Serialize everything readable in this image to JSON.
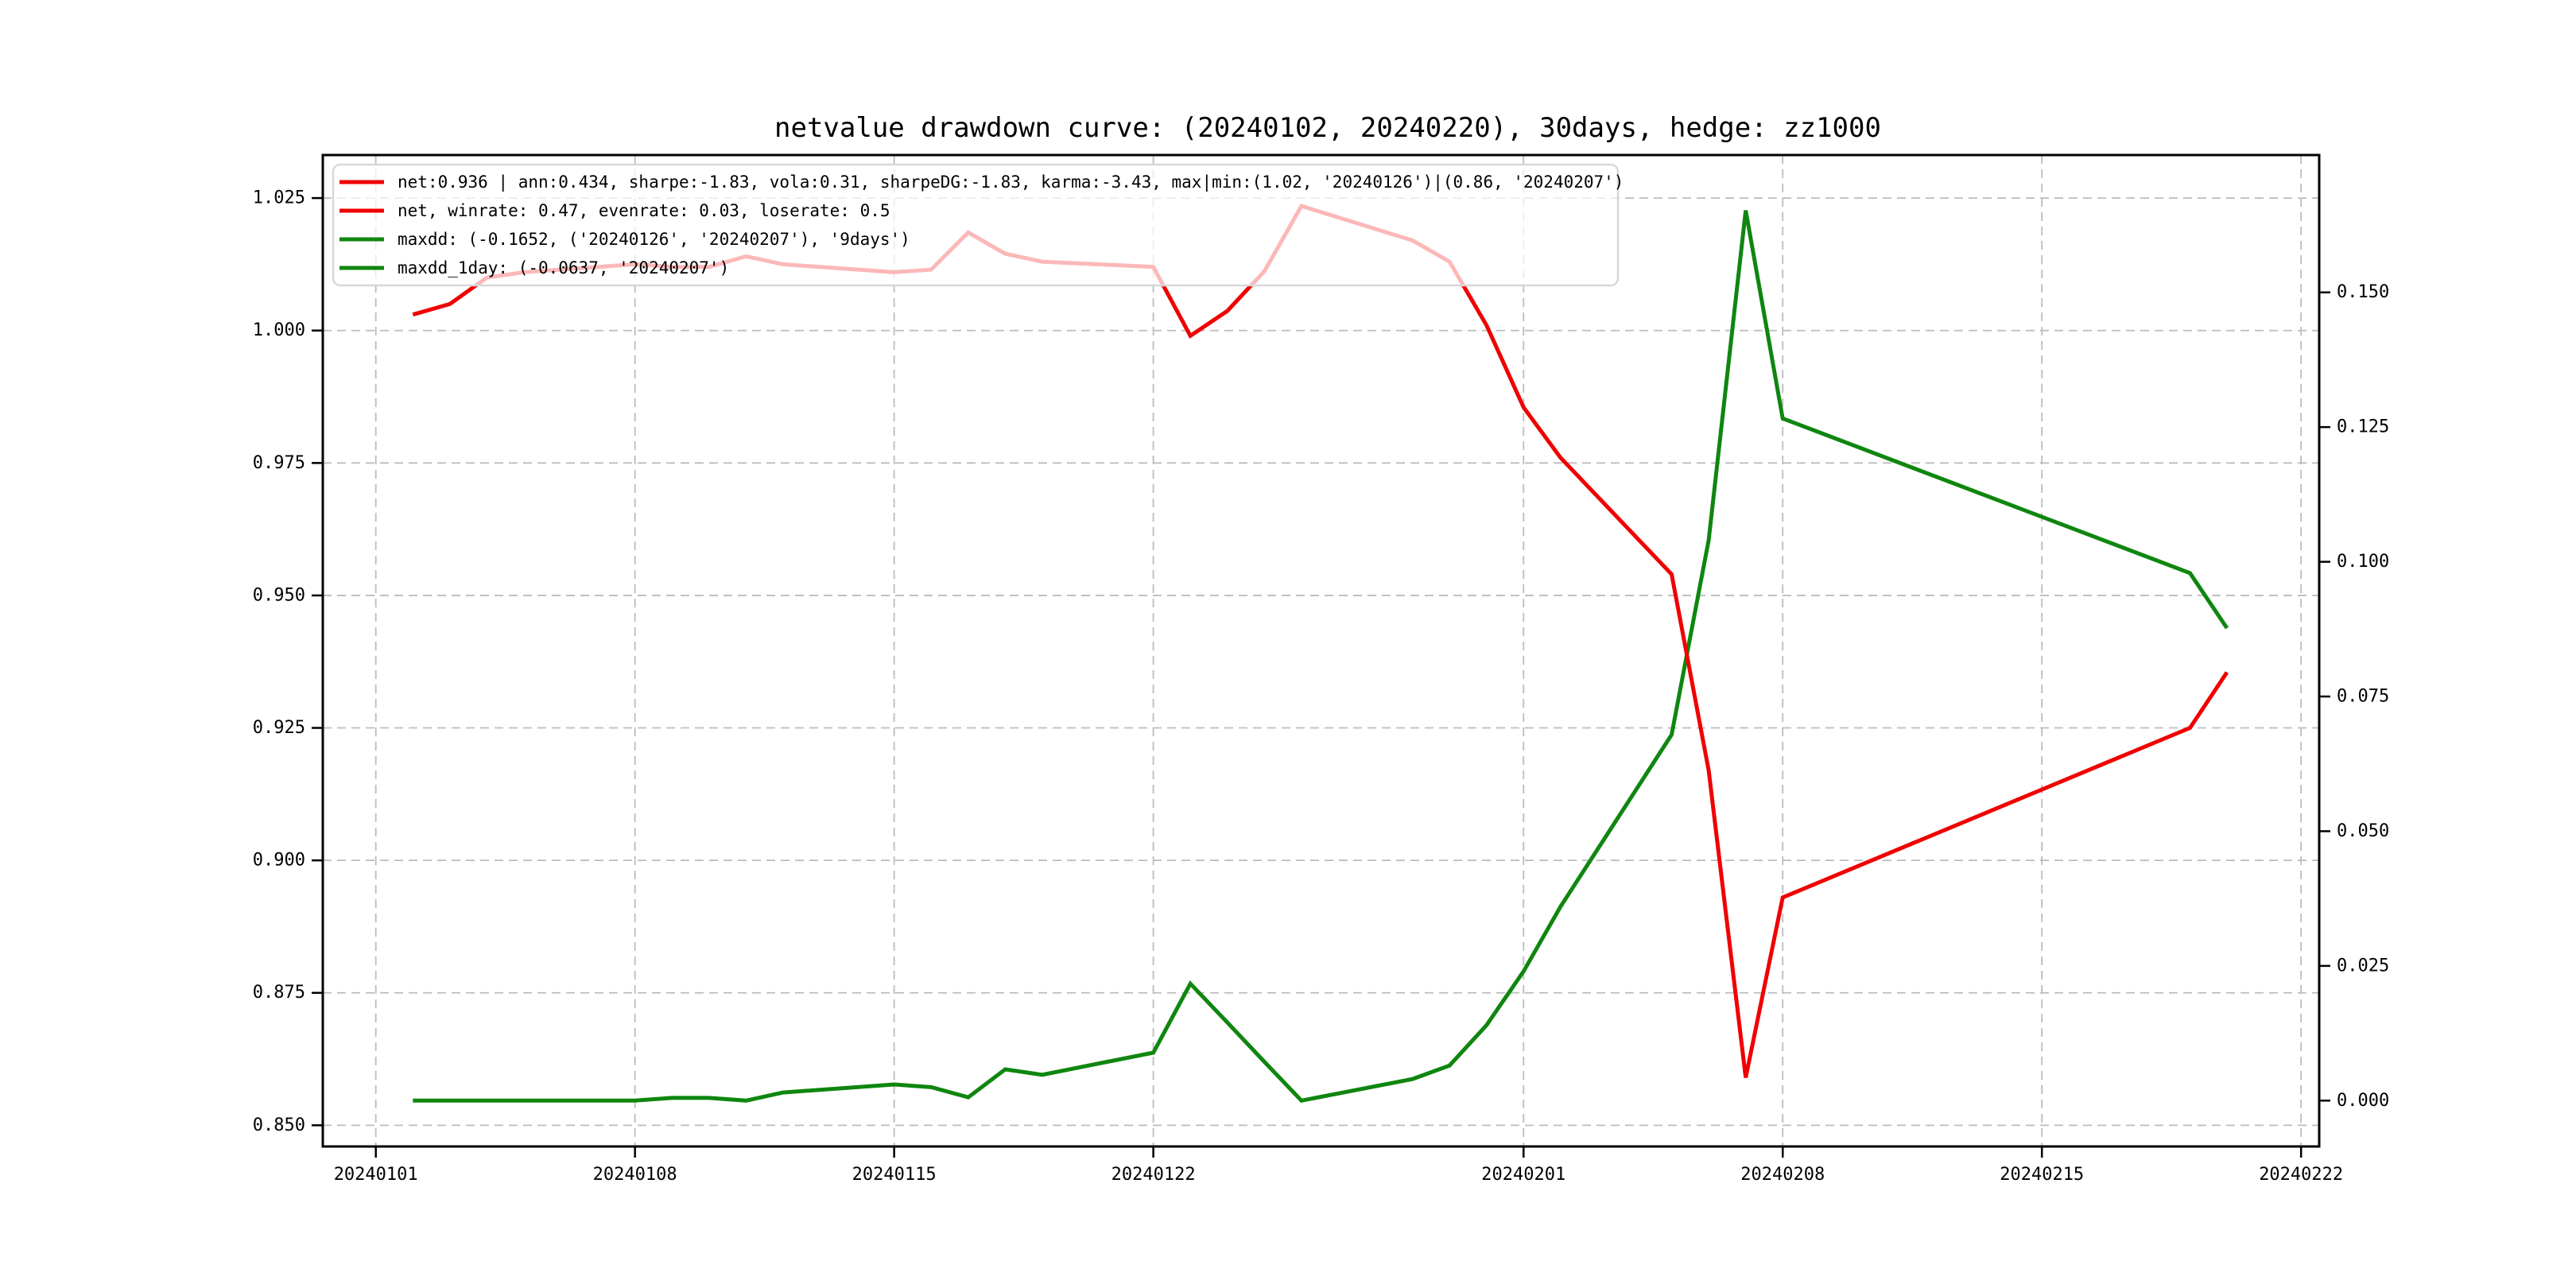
{
  "chart_data": {
    "type": "line",
    "title": "netvalue drawdown curve: (20240102, 20240220), 30days, hedge: zz1000",
    "x": [
      "20240102",
      "20240103",
      "20240104",
      "20240105",
      "20240108",
      "20240109",
      "20240110",
      "20240111",
      "20240112",
      "20240115",
      "20240116",
      "20240117",
      "20240118",
      "20240119",
      "20240122",
      "20240123",
      "20240124",
      "20240125",
      "20240126",
      "20240129",
      "20240130",
      "20240131",
      "20240201",
      "20240202",
      "20240205",
      "20240206",
      "20240207",
      "20240208",
      "20240219",
      "20240220"
    ],
    "series": [
      {
        "name": "net",
        "axis": "left",
        "color": "#f00000",
        "values": [
          1.003,
          1.005,
          1.01,
          1.011,
          1.0125,
          1.012,
          1.012,
          1.014,
          1.0125,
          1.011,
          1.0115,
          1.0185,
          1.0145,
          1.013,
          1.012,
          0.999,
          1.0037,
          1.0112,
          1.0235,
          1.017,
          1.013,
          1.001,
          0.9855,
          0.976,
          0.954,
          0.917,
          0.859,
          0.893,
          0.925,
          0.9355
        ]
      },
      {
        "name": "maxdd",
        "axis": "right",
        "color": "#0f860f",
        "values": [
          0,
          0,
          0,
          0,
          0,
          0.0005,
          0.0005,
          0,
          0.0015,
          0.003,
          0.0025,
          0.0006,
          0.0058,
          0.0048,
          0.0089,
          0.0217,
          0.0145,
          0.0072,
          0,
          0.004,
          0.0065,
          0.014,
          0.024,
          0.036,
          0.0679,
          0.104,
          0.1652,
          0.1266,
          0.0979,
          0.0877
        ]
      }
    ],
    "legend": [
      {
        "label": "net:0.936 | ann:0.434, sharpe:-1.83, vola:0.31, sharpeDG:-1.83, karma:-3.43, max|min:(1.02, '20240126')|(0.86, '20240207')",
        "color": "#f00000"
      },
      {
        "label": "net, winrate: 0.47, evenrate: 0.03, loserate: 0.5",
        "color": "#f00000"
      },
      {
        "label": "maxdd: (-0.1652, ('20240126', '20240207'), '9days')",
        "color": "#0f860f"
      },
      {
        "label": "maxdd_1day: (-0.0637, '20240207')",
        "color": "#0f860f"
      }
    ],
    "left_axis": {
      "tick_labels": [
        "1.025",
        "1.000",
        "0.975",
        "0.950",
        "0.925",
        "0.900",
        "0.875",
        "0.850"
      ],
      "tick_values": [
        1.025,
        1.0,
        0.975,
        0.95,
        0.925,
        0.9,
        0.875,
        0.85
      ],
      "range": [
        0.846,
        1.03312
      ]
    },
    "right_axis": {
      "tick_labels": [
        "0.150",
        "0.125",
        "0.100",
        "0.075",
        "0.050",
        "0.025",
        "0.000"
      ],
      "tick_values": [
        0.15,
        0.125,
        0.1,
        0.075,
        0.05,
        0.025,
        0.0
      ],
      "range": [
        -0.008514,
        0.17549
      ]
    },
    "x_axis": {
      "origin_date": "20240101",
      "tick_labels": [
        "20240101",
        "20240108",
        "20240115",
        "20240122",
        "20240201",
        "20240208",
        "20240215",
        "20240222"
      ],
      "tick_day_offsets": [
        0,
        7,
        14,
        21,
        31,
        38,
        45,
        52
      ],
      "range_days": [
        -1.432,
        52.49
      ]
    },
    "grid": "dashed",
    "legend_position": "upper-left",
    "colors": {
      "grid": "#bcbcbc",
      "spine": "#000000",
      "legend_border": "#d8d8d8"
    }
  }
}
